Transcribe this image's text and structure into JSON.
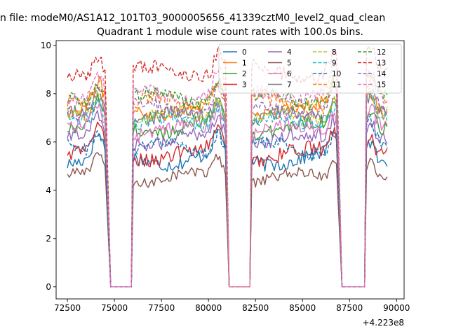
{
  "chart_data": {
    "type": "line",
    "suptitle": "n file: modeM0/AS1A12_101T03_9000005656_41339cztM0_level2_quad_clean",
    "title": "Quadrant 1 module wise count rates with 100.0s bins.",
    "xlabel": "",
    "ylabel": "",
    "xlim": [
      71900,
      90400
    ],
    "ylim": [
      -0.5,
      10.2
    ],
    "x_offset_label": "+4.223e8",
    "x_ticks": [
      72500,
      75000,
      77500,
      80000,
      82500,
      85000,
      87500,
      90000
    ],
    "x_tick_labels": [
      "72500",
      "75000",
      "77500",
      "80000",
      "82500",
      "85000",
      "87500",
      "90000"
    ],
    "y_ticks": [
      0,
      2,
      4,
      6,
      8,
      10
    ],
    "y_tick_labels": [
      "0",
      "2",
      "4",
      "6",
      "8",
      "10"
    ],
    "bin_seconds": 100,
    "segments": [
      {
        "start": 72500,
        "end": 74500,
        "peak_at": 74100
      },
      {
        "start": 76000,
        "end": 80900,
        "peak_at": 80500
      },
      {
        "start": 82300,
        "end": 86800,
        "peak_at": 86700
      },
      {
        "start": 88400,
        "end": 89500,
        "peak_at": 88600
      }
    ],
    "gaps": [
      {
        "drop_start": 74500,
        "zero_start": 74800,
        "zero_end": 75900,
        "rise_end": 76000
      },
      {
        "drop_start": 80900,
        "zero_start": 81100,
        "zero_end": 82200,
        "rise_end": 82300
      },
      {
        "drop_start": 86800,
        "zero_start": 87100,
        "zero_end": 88300,
        "rise_end": 88400
      }
    ],
    "legend": {
      "position": "upper-right",
      "columns": 4
    },
    "series": [
      {
        "name": "0",
        "color": "#1f77b4",
        "dash": "solid",
        "level": 5.3,
        "noise": 0.3
      },
      {
        "name": "1",
        "color": "#ff7f0e",
        "dash": "solid",
        "level": 7.4,
        "noise": 0.3
      },
      {
        "name": "2",
        "color": "#2ca02c",
        "dash": "solid",
        "level": 6.6,
        "noise": 0.3
      },
      {
        "name": "3",
        "color": "#d62728",
        "dash": "solid",
        "level": 5.5,
        "noise": 0.3
      },
      {
        "name": "4",
        "color": "#9467bd",
        "dash": "solid",
        "level": 6.1,
        "noise": 0.3
      },
      {
        "name": "5",
        "color": "#8c564b",
        "dash": "solid",
        "level": 4.5,
        "noise": 0.22
      },
      {
        "name": "6",
        "color": "#e377c2",
        "dash": "solid",
        "level": 6.5,
        "noise": 0.3
      },
      {
        "name": "7",
        "color": "#7f7f7f",
        "dash": "solid",
        "level": 7.0,
        "noise": 0.3
      },
      {
        "name": "8",
        "color": "#bcbd22",
        "dash": "dashed",
        "level": 7.0,
        "noise": 0.28
      },
      {
        "name": "9",
        "color": "#17becf",
        "dash": "dashed",
        "level": 6.8,
        "noise": 0.28
      },
      {
        "name": "10",
        "color": "#1f77b4",
        "dash": "dashed",
        "level": 5.7,
        "noise": 0.28
      },
      {
        "name": "11",
        "color": "#ff7f0e",
        "dash": "dashed",
        "level": 7.6,
        "noise": 0.28
      },
      {
        "name": "12",
        "color": "#2ca02c",
        "dash": "dashed",
        "level": 7.8,
        "noise": 0.28
      },
      {
        "name": "13",
        "color": "#d62728",
        "dash": "dashed",
        "level": 8.9,
        "noise": 0.3
      },
      {
        "name": "14",
        "color": "#9467bd",
        "dash": "dashed",
        "level": 7.4,
        "noise": 0.28
      },
      {
        "name": "15",
        "color": "#e377c2",
        "dash": "dashed",
        "level": 8.0,
        "noise": 0.3
      }
    ]
  }
}
